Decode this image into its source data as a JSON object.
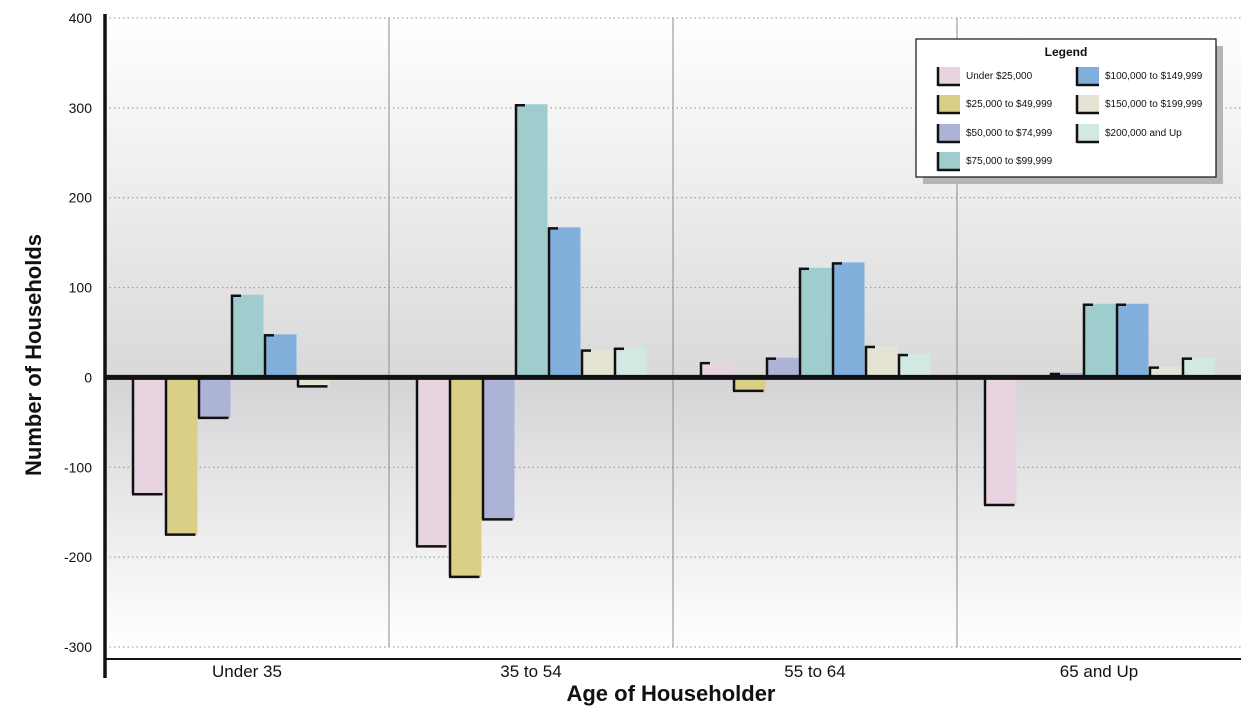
{
  "chart_data": {
    "type": "bar",
    "title": "",
    "xlabel": "Age of Householder",
    "ylabel": "Number of Households",
    "ylim": [
      -300,
      400
    ],
    "yticks": [
      "400",
      "300",
      "200",
      "100",
      "0",
      "-100",
      "-200",
      "-300"
    ],
    "ytick_values": [
      400,
      300,
      200,
      100,
      0,
      -100,
      -200,
      -300
    ],
    "categories": [
      "Under 35",
      "35 to 54",
      "55 to 64",
      "65 and Up"
    ],
    "grid": true,
    "legend": {
      "title": "Legend",
      "placement": "top-right"
    },
    "series": [
      {
        "name": "Under $25,000",
        "color": "#e8d3e0",
        "values": [
          -130,
          -188,
          17,
          -142
        ]
      },
      {
        "name": "$25,000 to $49,999",
        "color": "#d9cf86",
        "values": [
          -175,
          -222,
          -15,
          2
        ]
      },
      {
        "name": "$50,000 to $74,999",
        "color": "#adb3d6",
        "values": [
          -45,
          -158,
          22,
          5
        ]
      },
      {
        "name": "$75,000 to $99,999",
        "color": "#9fcccd",
        "values": [
          92,
          304,
          122,
          82
        ]
      },
      {
        "name": "$100,000 to $149,999",
        "color": "#82afdb",
        "values": [
          48,
          167,
          128,
          82
        ]
      },
      {
        "name": "$150,000 to $199,999",
        "color": "#e5e3d4",
        "values": [
          -10,
          31,
          35,
          12
        ]
      },
      {
        "name": "$200,000 and Up",
        "color": "#d2e8e2",
        "values": [
          -1,
          33,
          26,
          22
        ]
      }
    ]
  }
}
